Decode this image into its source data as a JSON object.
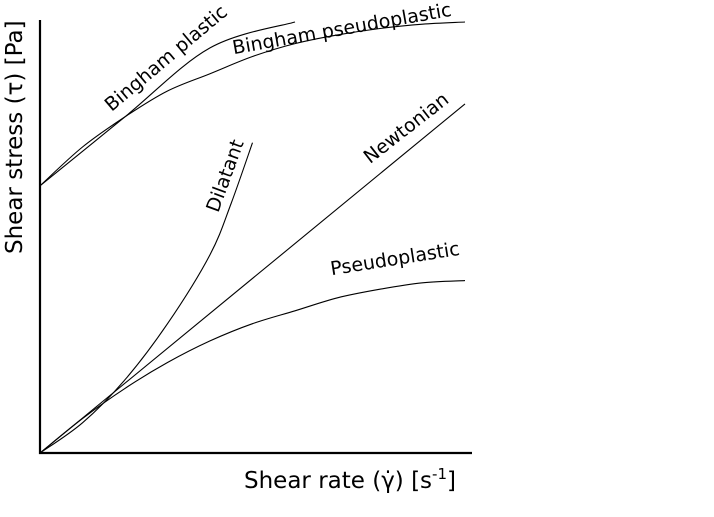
{
  "chart_data": {
    "type": "line",
    "title": "",
    "xlabel": "Shear rate (γ̇) [s⁻¹]",
    "ylabel": "Shear stress (τ) [Pa]",
    "xlabel_parts": {
      "main": "Shear rate (γ̇) [s",
      "sup": "-1",
      "end": "]"
    },
    "xlim": [
      0,
      1
    ],
    "ylim": [
      0,
      1
    ],
    "grid": false,
    "legend": "none",
    "series": [
      {
        "name": "Bingham plastic",
        "x": [
          0,
          0.2,
          0.4,
          0.6
        ],
        "y": [
          0.62,
          0.78,
          0.94,
          1.0
        ]
      },
      {
        "name": "Bingham pseudoplastic",
        "x": [
          0,
          0.1,
          0.2,
          0.3,
          0.4,
          0.5,
          0.6,
          0.7,
          0.8,
          0.9,
          1.0
        ],
        "y": [
          0.62,
          0.71,
          0.78,
          0.84,
          0.88,
          0.92,
          0.95,
          0.97,
          0.985,
          0.995,
          1.0
        ]
      },
      {
        "name": "Dilatant",
        "x": [
          0,
          0.1,
          0.2,
          0.3,
          0.4,
          0.45,
          0.5
        ],
        "y": [
          0,
          0.07,
          0.17,
          0.3,
          0.46,
          0.58,
          0.72
        ]
      },
      {
        "name": "Newtonian",
        "x": [
          0,
          1.0
        ],
        "y": [
          0,
          0.81
        ]
      },
      {
        "name": "Pseudoplastic",
        "x": [
          0,
          0.1,
          0.2,
          0.3,
          0.4,
          0.5,
          0.6,
          0.7,
          0.8,
          0.9,
          1.0
        ],
        "y": [
          0,
          0.08,
          0.15,
          0.21,
          0.26,
          0.3,
          0.33,
          0.36,
          0.38,
          0.395,
          0.4
        ]
      }
    ]
  }
}
